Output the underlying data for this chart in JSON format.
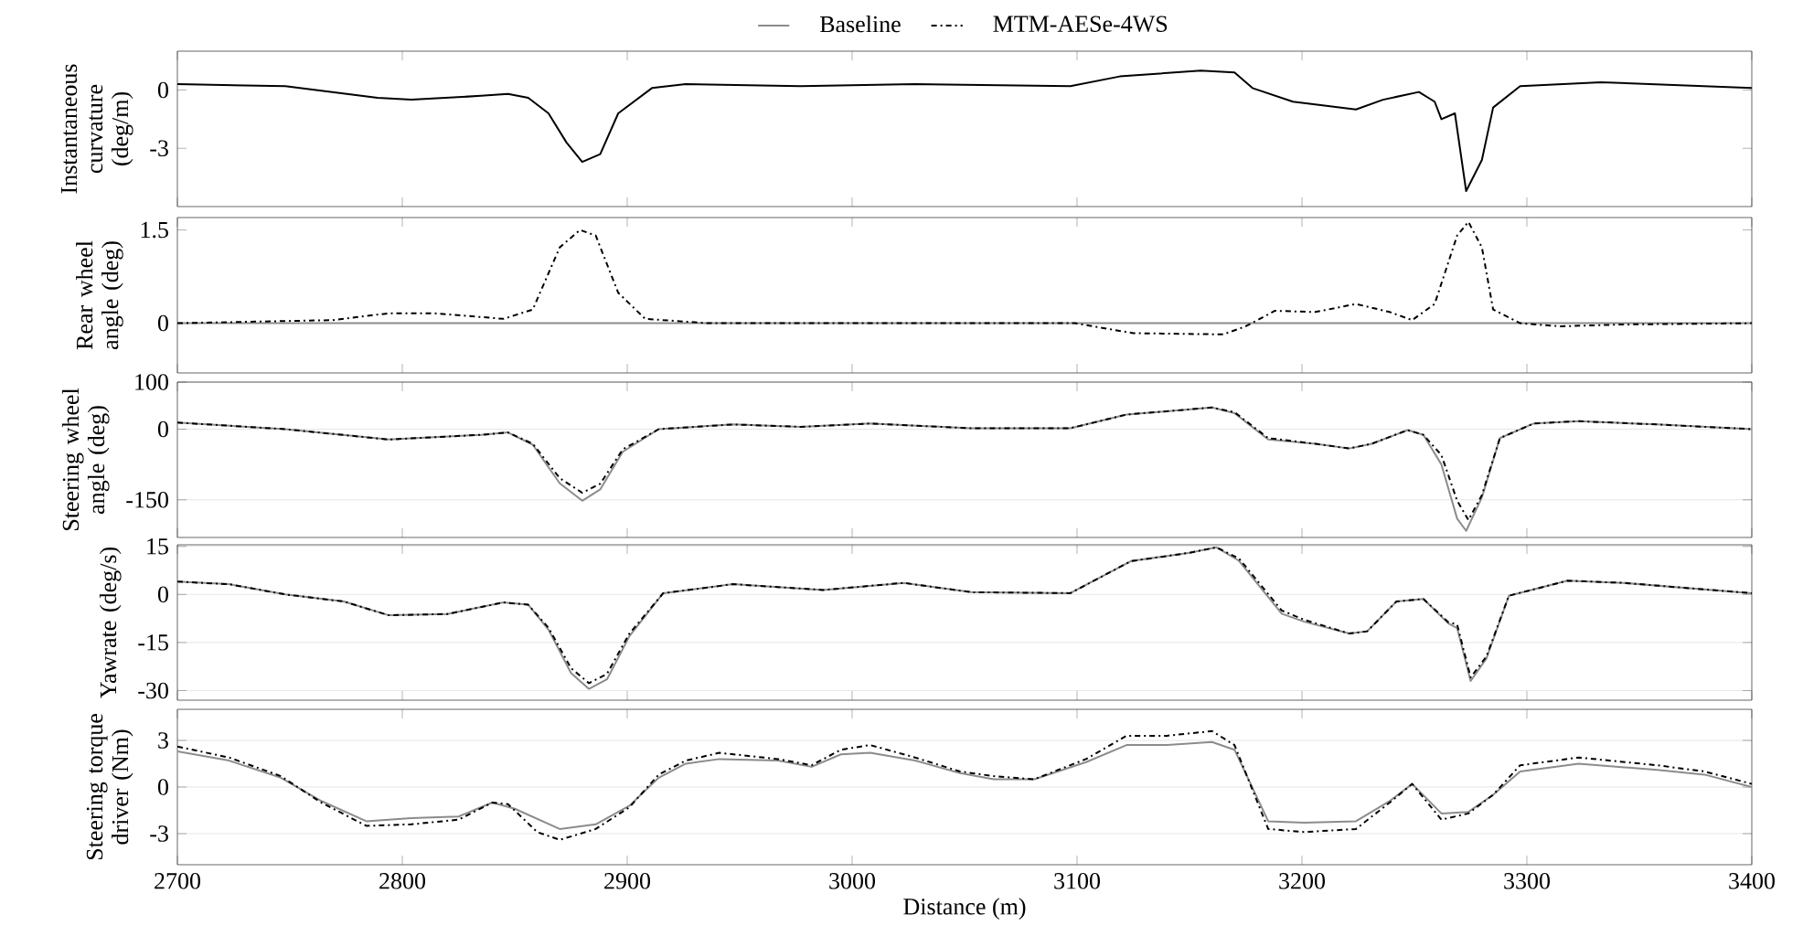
{
  "chart_data": [
    {
      "type": "line",
      "ylabel": "Instantaneous curvature (deg/m)",
      "xlim": [
        2700,
        3400
      ],
      "xticks": [
        2700,
        2800,
        2900,
        3000,
        3100,
        3200,
        3300,
        3400
      ],
      "ylim": [
        -6,
        2
      ],
      "yticks": [
        -3,
        0
      ],
      "tick_labels": "y",
      "series": [
        {
          "color": "#000000",
          "line_style": "solid",
          "x": [
            2700,
            2748,
            2789,
            2804,
            2835,
            2847,
            2856,
            2865,
            2873,
            2880,
            2888,
            2896,
            2911,
            2926,
            2977,
            3028,
            3097,
            3119,
            3155,
            3170,
            3178,
            3196,
            3224,
            3236,
            3252,
            3259,
            3262,
            3268,
            3273,
            3280,
            3285,
            3297,
            3333,
            3400
          ],
          "values": [
            0.3,
            0.2,
            -0.4,
            -0.5,
            -0.3,
            -0.2,
            -0.4,
            -1.2,
            -2.7,
            -3.7,
            -3.3,
            -1.2,
            0.1,
            0.3,
            0.2,
            0.3,
            0.2,
            0.7,
            1.0,
            0.9,
            0.1,
            -0.6,
            -1.0,
            -0.5,
            -0.1,
            -0.6,
            -1.5,
            -1.2,
            -5.2,
            -3.6,
            -0.9,
            0.2,
            0.4,
            0.1
          ]
        }
      ]
    },
    {
      "type": "line",
      "ylabel": "Rear wheel angle (deg)",
      "xlim": [
        2700,
        3400
      ],
      "xticks": [
        2700,
        2800,
        2900,
        3000,
        3100,
        3200,
        3300,
        3400
      ],
      "ylim": [
        -0.8,
        1.7
      ],
      "yticks": [
        0,
        1.5
      ],
      "tick_labels": "y",
      "legend": "top",
      "series": [
        {
          "name": "Baseline",
          "color": "#8c8c8c",
          "line_style": "solid",
          "x": [
            2700,
            3400
          ],
          "values": [
            0,
            0
          ]
        },
        {
          "name": "MTM-AESe-4WS",
          "color": "#000000",
          "line_style": "dashdot",
          "x": [
            2700,
            2769,
            2794,
            2814,
            2845,
            2858,
            2870,
            2879,
            2886,
            2896,
            2908,
            2936,
            3099,
            3125,
            3165,
            3175,
            3188,
            3206,
            3224,
            3239,
            3249,
            3259,
            3269,
            3274,
            3280,
            3285,
            3297,
            3315,
            3343,
            3400
          ],
          "values": [
            0,
            0.05,
            0.16,
            0.16,
            0.07,
            0.22,
            1.22,
            1.5,
            1.41,
            0.49,
            0.07,
            0,
            0,
            -0.16,
            -0.18,
            -0.05,
            0.2,
            0.18,
            0.31,
            0.18,
            0.05,
            0.31,
            1.41,
            1.63,
            1.22,
            0.22,
            0,
            -0.05,
            -0.02,
            0
          ]
        }
      ]
    },
    {
      "type": "line",
      "ylabel": "Steering wheel angle (deg)",
      "xlim": [
        2700,
        3400
      ],
      "xticks": [
        2700,
        2800,
        2900,
        3000,
        3100,
        3200,
        3300,
        3400
      ],
      "ylim": [
        -230,
        100
      ],
      "yticks": [
        -150,
        0,
        100
      ],
      "tick_labels": "y",
      "grid": "y",
      "series": [
        {
          "color": "#8c8c8c",
          "line_style": "solid",
          "x": [
            2700,
            2748,
            2794,
            2835,
            2847,
            2858,
            2870,
            2880,
            2888,
            2898,
            2914,
            2947,
            2977,
            3008,
            3053,
            3097,
            3122,
            3160,
            3170,
            3185,
            3206,
            3221,
            3231,
            3247,
            3254,
            3262,
            3269,
            3273,
            3280,
            3288,
            3303,
            3323,
            3358,
            3400
          ],
          "values": [
            14,
            0,
            -22,
            -12,
            -7,
            -33,
            -115,
            -152,
            -128,
            -48,
            0,
            10,
            5,
            12,
            2,
            2,
            31,
            46,
            34,
            -22,
            -31,
            -41,
            -31,
            -2,
            -12,
            -75,
            -190,
            -216,
            -145,
            -19,
            12,
            17,
            10,
            0
          ]
        },
        {
          "color": "#000000",
          "line_style": "dashdot",
          "x": [
            2700,
            2748,
            2794,
            2835,
            2847,
            2858,
            2870,
            2880,
            2888,
            2898,
            2914,
            2947,
            2977,
            3008,
            3053,
            3097,
            3122,
            3160,
            3170,
            3185,
            3206,
            3221,
            3231,
            3247,
            3254,
            3262,
            3269,
            3274,
            3280,
            3288,
            3303,
            3323,
            3358,
            3400
          ],
          "values": [
            14,
            0,
            -22,
            -12,
            -7,
            -31,
            -104,
            -135,
            -116,
            -43,
            0,
            10,
            5,
            12,
            2,
            2,
            31,
            46,
            36,
            -19,
            -31,
            -41,
            -31,
            -2,
            -12,
            -55,
            -152,
            -193,
            -140,
            -19,
            12,
            17,
            10,
            0
          ]
        }
      ]
    },
    {
      "type": "line",
      "ylabel": "Yawrate (deg/s)",
      "xlim": [
        2700,
        3400
      ],
      "xticks": [
        2700,
        2800,
        2900,
        3000,
        3100,
        3200,
        3300,
        3400
      ],
      "ylim": [
        -33,
        15.5
      ],
      "yticks": [
        -30,
        -15,
        0,
        15
      ],
      "tick_labels": "y",
      "grid": "y",
      "series": [
        {
          "color": "#8c8c8c",
          "line_style": "solid",
          "x": [
            2700,
            2723,
            2748,
            2774,
            2794,
            2820,
            2845,
            2856,
            2865,
            2875,
            2883,
            2891,
            2901,
            2916,
            2947,
            2987,
            3023,
            3053,
            3097,
            3124,
            3150,
            3162,
            3172,
            3191,
            3201,
            3221,
            3229,
            3242,
            3254,
            3265,
            3269,
            3275,
            3282,
            3292,
            3318,
            3343,
            3400
          ],
          "values": [
            4,
            3.2,
            0,
            -2.2,
            -6.5,
            -6.1,
            -2.5,
            -3.2,
            -11,
            -24.5,
            -29.5,
            -26.5,
            -13,
            0.4,
            3.2,
            1.4,
            3.6,
            0.7,
            0.4,
            10.4,
            13,
            14.7,
            10.5,
            -6,
            -8.5,
            -12.2,
            -11.5,
            -2.2,
            -1.4,
            -9,
            -10.5,
            -27,
            -20,
            -0.4,
            4.3,
            3.6,
            0.4
          ]
        },
        {
          "color": "#000000",
          "line_style": "dashdot",
          "x": [
            2700,
            2723,
            2748,
            2774,
            2794,
            2820,
            2845,
            2856,
            2865,
            2875,
            2883,
            2891,
            2901,
            2916,
            2947,
            2987,
            3023,
            3053,
            3097,
            3124,
            3150,
            3162,
            3172,
            3191,
            3201,
            3221,
            3229,
            3242,
            3254,
            3265,
            3269,
            3275,
            3282,
            3292,
            3318,
            3343,
            3400
          ],
          "values": [
            4,
            3.2,
            0,
            -2.2,
            -6.5,
            -6.1,
            -2.5,
            -3.2,
            -10.4,
            -23,
            -27.7,
            -24.8,
            -12.2,
            0.4,
            3.2,
            1.4,
            3.6,
            0.7,
            0.4,
            10.4,
            13,
            14.7,
            11.2,
            -5,
            -7.9,
            -12.2,
            -11.5,
            -2.2,
            -1.4,
            -8.6,
            -9.4,
            -25.9,
            -19.4,
            -0.4,
            4.3,
            3.6,
            0.4
          ]
        }
      ]
    },
    {
      "type": "line",
      "ylabel": "Steering torque driver (Nm)",
      "xlabel": "Distance (m)",
      "xlim": [
        2700,
        3400
      ],
      "xticks": [
        2700,
        2800,
        2900,
        3000,
        3100,
        3200,
        3300,
        3400
      ],
      "ylim": [
        -5,
        5
      ],
      "yticks": [
        -3,
        0,
        3
      ],
      "grid": "y",
      "series": [
        {
          "color": "#8c8c8c",
          "line_style": "solid",
          "x": [
            2700,
            2723,
            2746,
            2764,
            2784,
            2804,
            2825,
            2840,
            2850,
            2870,
            2886,
            2901,
            2914,
            2926,
            2941,
            2967,
            2982,
            2995,
            3008,
            3028,
            3048,
            3063,
            3081,
            3104,
            3122,
            3140,
            3160,
            3170,
            3185,
            3201,
            3224,
            3239,
            3249,
            3262,
            3274,
            3285,
            3297,
            3323,
            3358,
            3379,
            3400
          ],
          "values": [
            2.3,
            1.7,
            0.6,
            -0.9,
            -2.2,
            -2.0,
            -1.9,
            -1.0,
            -1.4,
            -2.7,
            -2.4,
            -1.2,
            0.6,
            1.5,
            1.8,
            1.7,
            1.3,
            2.1,
            2.2,
            1.7,
            0.9,
            0.5,
            0.5,
            1.6,
            2.7,
            2.7,
            2.9,
            2.4,
            -2.2,
            -2.3,
            -2.2,
            -0.9,
            0.2,
            -1.7,
            -1.6,
            -0.5,
            1.0,
            1.5,
            1.1,
            0.8,
            0.0
          ]
        },
        {
          "color": "#000000",
          "line_style": "dashdot",
          "x": [
            2700,
            2723,
            2746,
            2764,
            2784,
            2804,
            2825,
            2840,
            2847,
            2860,
            2870,
            2886,
            2901,
            2914,
            2926,
            2941,
            2967,
            2982,
            2995,
            3008,
            3028,
            3048,
            3063,
            3081,
            3104,
            3122,
            3140,
            3160,
            3170,
            3185,
            3201,
            3224,
            3239,
            3249,
            3262,
            3274,
            3285,
            3297,
            3323,
            3358,
            3379,
            3400
          ],
          "values": [
            2.6,
            1.9,
            0.7,
            -1.0,
            -2.5,
            -2.4,
            -2.1,
            -1.0,
            -1.1,
            -2.9,
            -3.4,
            -2.7,
            -1.3,
            0.8,
            1.7,
            2.2,
            1.8,
            1.4,
            2.4,
            2.7,
            1.9,
            1.0,
            0.7,
            0.5,
            1.8,
            3.3,
            3.3,
            3.6,
            2.7,
            -2.7,
            -2.9,
            -2.7,
            -1.0,
            0.2,
            -2.1,
            -1.7,
            -0.5,
            1.4,
            1.9,
            1.4,
            1.0,
            0.2
          ]
        }
      ]
    }
  ]
}
